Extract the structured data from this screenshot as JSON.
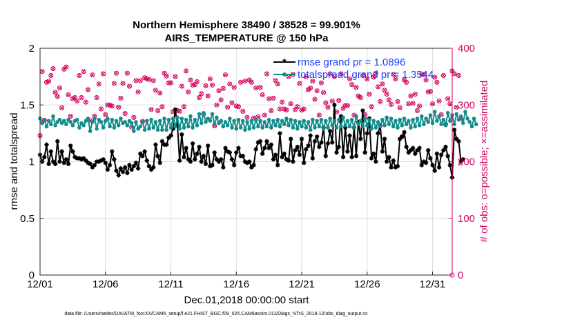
{
  "chart_data": {
    "type": "line",
    "title": "Northern Hemisphere 38490 / 38528 = 99.901%",
    "subtitle": "AIRS_TEMPERATURE @ 150 hPa",
    "xlabel": "Dec.01,2018 00:00:00 start",
    "ylabel": "rmse and totalspread",
    "y2label": "# of obs: o=possible; ×=assimilated",
    "xlim": [
      0,
      31.5
    ],
    "ylim": [
      0,
      2
    ],
    "y2lim": [
      0,
      400
    ],
    "x_ticks": [
      0,
      5,
      10,
      15,
      20,
      25,
      30
    ],
    "x_tick_labels": [
      "12/01",
      "12/06",
      "12/11",
      "12/16",
      "12/21",
      "12/26",
      "12/31"
    ],
    "y_ticks": [
      "0",
      "0.5",
      "1",
      "1.5",
      "2"
    ],
    "y2_ticks": [
      "0",
      "100",
      "200",
      "300",
      "400"
    ],
    "grid": true,
    "legend_position": "top-right",
    "series": [
      {
        "name": "rmse grand pr = 1.0896",
        "color": "#000000",
        "values": [
          1.06,
          1.0,
          1.04,
          1.15,
          0.98,
          1.09,
          1.0,
          0.98,
          1.18,
          1.0,
          1.09,
          0.99,
          1.02,
          0.98,
          1.14,
          1.09,
          1.04,
          1.03,
          1.03,
          1.02,
          1.03,
          1.01,
          0.99,
          0.98,
          0.95,
          0.97,
          1.0,
          1.0,
          1.01,
          1.02,
          0.99,
          0.93,
          0.97,
          1.09,
          1.02,
          0.92,
          0.88,
          0.94,
          0.91,
          0.95,
          0.9,
          0.97,
          0.93,
          0.96,
          0.99,
          0.94,
          1.07,
          1.05,
          1.09,
          1.01,
          0.96,
          0.93,
          0.95,
          1.15,
          1.05,
          0.99,
          1.18,
          1.15,
          1.15,
          1.21,
          1.23,
          1.29,
          1.46,
          1.32,
          1.01,
          1.24,
          1.04,
          1.12,
          1.02,
          1.0,
          1.16,
          1.02,
          1.07,
          1.13,
          1.0,
          1.05,
          0.98,
          1.14,
          0.96,
          0.97,
          1.08,
          1.02,
          1.0,
          1.02,
          0.95,
          1.12,
          1.09,
          1.08,
          1.02,
          0.97,
          1.08,
          1.12,
          1.05,
          1.05,
          1.0,
          0.99,
          1.0,
          0.95,
          0.97,
          1.11,
          1.17,
          1.18,
          1.07,
          1.12,
          1.18,
          1.12,
          1.15,
          1.02,
          1.06,
          0.97,
          1.25,
          1.04,
          1.07,
          1.02,
          1.01,
          1.2,
          1.0,
          1.1,
          1.13,
          1.06,
          1.2,
          0.99,
          1.11,
          1.14,
          1.23,
          1.03,
          1.18,
          1.22,
          1.13,
          1.17,
          1.3,
          1.05,
          1.16,
          1.27,
          1.17,
          1.5,
          1.08,
          1.13,
          1.4,
          1.04,
          1.3,
          1.09,
          1.23,
          1.04,
          1.3,
          1.05,
          1.35,
          1.2,
          1.45,
          1.08,
          1.25,
          1.38,
          1.03,
          1.07,
          1.0,
          1.25,
          1.32,
          1.09,
          1.2,
          1.0,
          1.04,
          0.95,
          1.01,
          0.95,
          0.96,
          1.2,
          1.22,
          1.26,
          1.13,
          1.08,
          1.1,
          1.12,
          1.07,
          1.1,
          1.12,
          0.97,
          1.0,
          0.99,
          1.1,
          1.03,
          0.97,
          0.92,
          1.07,
          0.95,
          1.06,
          1.1,
          1.13,
          1.05,
          0.97,
          0.86,
          1.28,
          1.2,
          1.18,
          1.0,
          1.02
        ]
      },
      {
        "name": "totalspread grand pr = 1.3544",
        "color": "#138c8a",
        "values": [
          1.38,
          1.34,
          1.37,
          1.31,
          1.36,
          1.33,
          1.4,
          1.32,
          1.35,
          1.37,
          1.34,
          1.36,
          1.33,
          1.37,
          1.35,
          1.32,
          1.36,
          1.37,
          1.3,
          1.34,
          1.32,
          1.36,
          1.38,
          1.27,
          1.35,
          1.38,
          1.29,
          1.37,
          1.35,
          1.3,
          1.36,
          1.38,
          1.31,
          1.37,
          1.3,
          1.36,
          1.32,
          1.38,
          1.34,
          1.35,
          1.32,
          1.36,
          1.34,
          1.27,
          1.35,
          1.29,
          1.31,
          1.35,
          1.28,
          1.36,
          1.29,
          1.37,
          1.3,
          1.35,
          1.28,
          1.36,
          1.28,
          1.38,
          1.28,
          1.37,
          1.3,
          1.38,
          1.31,
          1.39,
          1.29,
          1.38,
          1.3,
          1.37,
          1.31,
          1.4,
          1.3,
          1.37,
          1.32,
          1.42,
          1.34,
          1.43,
          1.35,
          1.38,
          1.36,
          1.42,
          1.33,
          1.39,
          1.34,
          1.36,
          1.31,
          1.35,
          1.32,
          1.38,
          1.3,
          1.36,
          1.29,
          1.37,
          1.3,
          1.36,
          1.28,
          1.35,
          1.29,
          1.36,
          1.3,
          1.37,
          1.31,
          1.36,
          1.3,
          1.35,
          1.31,
          1.37,
          1.3,
          1.36,
          1.32,
          1.37,
          1.31,
          1.36,
          1.33,
          1.38,
          1.32,
          1.37,
          1.3,
          1.36,
          1.29,
          1.35,
          1.31,
          1.36,
          1.3,
          1.35,
          1.28,
          1.37,
          1.3,
          1.36,
          1.31,
          1.37,
          1.29,
          1.36,
          1.3,
          1.38,
          1.32,
          1.36,
          1.3,
          1.37,
          1.31,
          1.39,
          1.32,
          1.36,
          1.31,
          1.37,
          1.3,
          1.4,
          1.33,
          1.36,
          1.31,
          1.38,
          1.32,
          1.37,
          1.29,
          1.36,
          1.3,
          1.35,
          1.31,
          1.37,
          1.32,
          1.39,
          1.33,
          1.38,
          1.31,
          1.36,
          1.3,
          1.37,
          1.32,
          1.38,
          1.33,
          1.36,
          1.3,
          1.37,
          1.31,
          1.38,
          1.32,
          1.4,
          1.33,
          1.38,
          1.35,
          1.41,
          1.34,
          1.44,
          1.36,
          1.4,
          1.33,
          1.37,
          1.32,
          1.43,
          1.36,
          1.41,
          1.33,
          1.42,
          1.37,
          1.4,
          1.34,
          1.44,
          1.38,
          1.35,
          1.31,
          1.38,
          1.33
        ]
      }
    ],
    "obs_possible": [
      246,
      359,
      273,
      340,
      342,
      352,
      364,
      322,
      315,
      330,
      295,
      363,
      367,
      318,
      280,
      311,
      313,
      307,
      352,
      313,
      359,
      305,
      327,
      272,
      353,
      280,
      313,
      337,
      293,
      355,
      283,
      300,
      300,
      298,
      338,
      356,
      296,
      312,
      338,
      285,
      356,
      333,
      261,
      278,
      343,
      323,
      343,
      271,
      348,
      346,
      345,
      292,
      343,
      326,
      290,
      321,
      297,
      356,
      351,
      339,
      339,
      288,
      350,
      290,
      289,
      333,
      297,
      360,
      323,
      344,
      335,
      336,
      341,
      313,
      320,
      284,
      334,
      316,
      346,
      335,
      263,
      300,
      325,
      309,
      329,
      353,
      296,
      337,
      304,
      331,
      298,
      297,
      340,
      289,
      342,
      278,
      344,
      340,
      277,
      330,
      279,
      331,
      318,
      282,
      355,
      311,
      290,
      312,
      343,
      337,
      293,
      305,
      293,
      291,
      350,
      302,
      354,
      292,
      297,
      338,
      291,
      293,
      350,
      327,
      330,
      342,
      310,
      325,
      282,
      339,
      322,
      304,
      296,
      355,
      307,
      350,
      288,
      308,
      355,
      294,
      299,
      299,
      346,
      336,
      282,
      331,
      316,
      313,
      352,
      283,
      346,
      319,
      297,
      349,
      356,
      332,
      306,
      337,
      326,
      319,
      309,
      301,
      354,
      346,
      306,
      295,
      244,
      344,
      340,
      302,
      316,
      303,
      319,
      290,
      298,
      354,
      354,
      344,
      323,
      324,
      302,
      349,
      340,
      307,
      283,
      352,
      266,
      311,
      302,
      360,
      355,
      296,
      352,
      275
    ],
    "obs_assimilated": [
      246,
      359,
      273,
      340,
      342,
      352,
      364,
      322,
      315,
      330,
      295,
      363,
      367,
      318,
      280,
      311,
      313,
      307,
      352,
      313,
      359,
      305,
      327,
      272,
      353,
      280,
      313,
      337,
      293,
      355,
      283,
      300,
      300,
      298,
      338,
      356,
      296,
      312,
      338,
      285,
      356,
      333,
      261,
      278,
      343,
      323,
      343,
      271,
      348,
      346,
      345,
      292,
      343,
      326,
      290,
      321,
      297,
      356,
      351,
      339,
      339,
      288,
      350,
      290,
      289,
      333,
      297,
      360,
      323,
      344,
      335,
      336,
      341,
      313,
      320,
      284,
      334,
      316,
      346,
      335,
      263,
      300,
      325,
      309,
      329,
      353,
      296,
      337,
      304,
      331,
      298,
      297,
      340,
      289,
      342,
      278,
      344,
      340,
      277,
      330,
      279,
      331,
      318,
      282,
      355,
      311,
      290,
      312,
      343,
      337,
      293,
      305,
      293,
      291,
      350,
      302,
      354,
      292,
      297,
      338,
      291,
      293,
      350,
      327,
      330,
      342,
      310,
      325,
      282,
      339,
      322,
      304,
      296,
      355,
      307,
      350,
      288,
      308,
      355,
      294,
      299,
      299,
      346,
      336,
      282,
      331,
      316,
      313,
      352,
      283,
      346,
      319,
      297,
      349,
      356,
      332,
      306,
      337,
      326,
      319,
      309,
      301,
      354,
      346,
      306,
      295,
      244,
      344,
      340,
      302,
      316,
      303,
      319,
      290,
      298,
      354,
      354,
      344,
      323,
      324,
      302,
      349,
      340,
      307,
      283,
      352,
      266,
      311,
      302,
      360,
      355,
      296,
      352,
      275
    ]
  },
  "footer": "data file: /Users/raeder/DAI/ATM_forcXX/CAM6_setup/f.e21.FHIST_BGC.f09_025.CAM6assim.011/Diags_NTrS_2018-12/obs_diag_output.nc",
  "colors": {
    "rmse": "#000000",
    "spread": "#138c8a",
    "obs": "#d40060",
    "legend_text": "#1f3fff",
    "right_axis": "#d40060"
  }
}
